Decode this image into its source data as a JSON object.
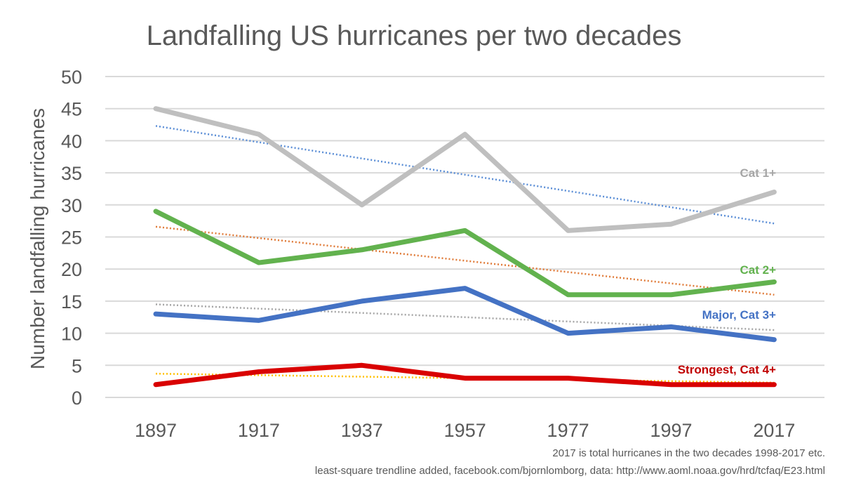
{
  "chart_data": {
    "type": "line",
    "title": "Landfalling US hurricanes per two decades",
    "xlabel": "",
    "ylabel": "Number landfalling hurricanes",
    "x": [
      "1897",
      "1917",
      "1937",
      "1957",
      "1977",
      "1997",
      "2017"
    ],
    "ylim": [
      0,
      50
    ],
    "yticks": [
      0,
      5,
      10,
      15,
      20,
      25,
      30,
      35,
      40,
      45,
      50
    ],
    "grid": true,
    "series": [
      {
        "name": "Cat 1+",
        "values": [
          45,
          41,
          30,
          41,
          26,
          27,
          32
        ],
        "color": "#bfbfbf",
        "label_color": "#a6a6a6",
        "trend": {
          "start": 42.3,
          "end": 27.1,
          "color": "#5b8ed6"
        }
      },
      {
        "name": "Cat 2+",
        "values": [
          29,
          21,
          23,
          26,
          16,
          16,
          18
        ],
        "color": "#62b24e",
        "label_color": "#62b24e",
        "trend": {
          "start": 26.6,
          "end": 16.0,
          "color": "#e07b39"
        }
      },
      {
        "name": "Major, Cat 3+",
        "values": [
          13,
          12,
          15,
          17,
          10,
          11,
          9
        ],
        "color": "#4472c4",
        "label_color": "#4472c4",
        "trend": {
          "start": 14.5,
          "end": 10.5,
          "color": "#a6a6a6"
        }
      },
      {
        "name": "Strongest, Cat 4+",
        "values": [
          2,
          4,
          5,
          3,
          3,
          2,
          2
        ],
        "color": "#d90000",
        "label_color": "#c00000",
        "trend": {
          "start": 3.7,
          "end": 2.3,
          "color": "#ffc000"
        }
      }
    ],
    "footnotes": [
      "2017 is total hurricanes  in the two decades 1998-2017 etc.",
      "least-square trendline  added, facebook.com/bjornlomborg,  data: http://www.aoml.noaa.gov/hrd/tcfaq/E23.html"
    ]
  }
}
